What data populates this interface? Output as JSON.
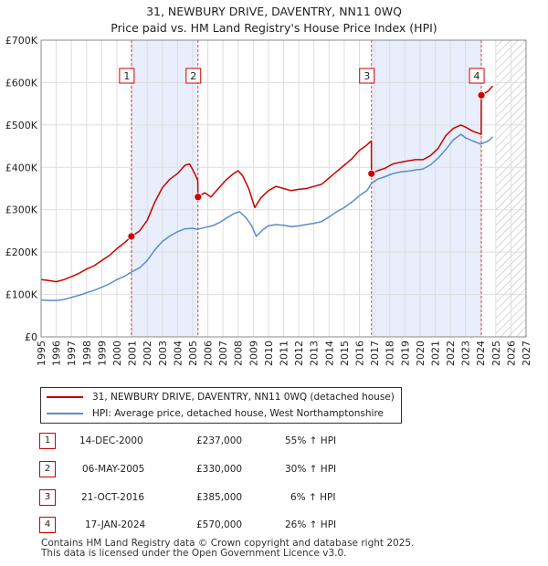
{
  "chart_data": {
    "type": "line",
    "title": "31, NEWBURY DRIVE, DAVENTRY, NN11 0WQ",
    "subtitle": "Price paid vs. HM Land Registry's House Price Index (HPI)",
    "xlim": [
      1995,
      2027
    ],
    "ylim": [
      0,
      700000
    ],
    "x_ticks": [
      1995,
      1996,
      1997,
      1998,
      1999,
      2000,
      2001,
      2002,
      2003,
      2004,
      2005,
      2006,
      2007,
      2008,
      2009,
      2010,
      2011,
      2012,
      2013,
      2014,
      2015,
      2016,
      2017,
      2018,
      2019,
      2020,
      2021,
      2022,
      2023,
      2024,
      2025,
      2026,
      2027
    ],
    "y_ticks": [
      {
        "value": 0,
        "label": "£0"
      },
      {
        "value": 100000,
        "label": "£100K"
      },
      {
        "value": 200000,
        "label": "£200K"
      },
      {
        "value": 300000,
        "label": "£300K"
      },
      {
        "value": 400000,
        "label": "£400K"
      },
      {
        "value": 500000,
        "label": "£500K"
      },
      {
        "value": 600000,
        "label": "£600K"
      },
      {
        "value": 700000,
        "label": "£700K"
      }
    ],
    "hatch_from": 2025.0,
    "shaded_spans": [
      [
        2000.96,
        2005.35
      ],
      [
        2016.8,
        2024.05
      ]
    ],
    "series": [
      {
        "name": "31, NEWBURY DRIVE, DAVENTRY, NN11 0WQ (detached house)",
        "color": "#cc0000",
        "points": [
          [
            1995.0,
            135000
          ],
          [
            1995.5,
            133000
          ],
          [
            1996.0,
            130000
          ],
          [
            1996.5,
            135000
          ],
          [
            1997.0,
            142000
          ],
          [
            1997.5,
            150000
          ],
          [
            1998.0,
            160000
          ],
          [
            1998.5,
            168000
          ],
          [
            1999.0,
            180000
          ],
          [
            1999.5,
            192000
          ],
          [
            2000.0,
            208000
          ],
          [
            2000.5,
            222000
          ],
          [
            2000.96,
            237000
          ],
          [
            2001.5,
            250000
          ],
          [
            2002.0,
            275000
          ],
          [
            2002.5,
            318000
          ],
          [
            2003.0,
            352000
          ],
          [
            2003.5,
            372000
          ],
          [
            2004.0,
            385000
          ],
          [
            2004.5,
            405000
          ],
          [
            2004.8,
            408000
          ],
          [
            2005.0,
            395000
          ],
          [
            2005.2,
            380000
          ],
          [
            2005.34,
            368000
          ],
          [
            2005.35,
            330000
          ],
          [
            2005.8,
            340000
          ],
          [
            2006.2,
            330000
          ],
          [
            2006.7,
            350000
          ],
          [
            2007.2,
            370000
          ],
          [
            2007.7,
            385000
          ],
          [
            2008.0,
            392000
          ],
          [
            2008.3,
            380000
          ],
          [
            2008.7,
            350000
          ],
          [
            2009.1,
            305000
          ],
          [
            2009.5,
            328000
          ],
          [
            2010.0,
            345000
          ],
          [
            2010.5,
            355000
          ],
          [
            2011.0,
            350000
          ],
          [
            2011.5,
            345000
          ],
          [
            2012.0,
            348000
          ],
          [
            2012.5,
            350000
          ],
          [
            2013.0,
            355000
          ],
          [
            2013.5,
            360000
          ],
          [
            2014.0,
            375000
          ],
          [
            2014.5,
            390000
          ],
          [
            2015.0,
            405000
          ],
          [
            2015.5,
            420000
          ],
          [
            2016.0,
            440000
          ],
          [
            2016.4,
            450000
          ],
          [
            2016.79,
            462000
          ],
          [
            2016.8,
            385000
          ],
          [
            2017.2,
            392000
          ],
          [
            2017.7,
            398000
          ],
          [
            2018.2,
            408000
          ],
          [
            2018.7,
            412000
          ],
          [
            2019.2,
            415000
          ],
          [
            2019.7,
            418000
          ],
          [
            2020.2,
            418000
          ],
          [
            2020.7,
            428000
          ],
          [
            2021.2,
            445000
          ],
          [
            2021.7,
            475000
          ],
          [
            2022.2,
            492000
          ],
          [
            2022.7,
            500000
          ],
          [
            2023.0,
            495000
          ],
          [
            2023.5,
            485000
          ],
          [
            2024.04,
            478000
          ],
          [
            2024.05,
            570000
          ],
          [
            2024.5,
            580000
          ],
          [
            2024.8,
            592000
          ]
        ]
      },
      {
        "name": "HPI: Average price, detached house, West Northamptonshire",
        "color": "#5b8ccc",
        "points": [
          [
            1995.0,
            87000
          ],
          [
            1995.5,
            86000
          ],
          [
            1996.0,
            86000
          ],
          [
            1996.5,
            88000
          ],
          [
            1997.0,
            93000
          ],
          [
            1997.5,
            98000
          ],
          [
            1998.0,
            104000
          ],
          [
            1998.5,
            110000
          ],
          [
            1999.0,
            117000
          ],
          [
            1999.5,
            125000
          ],
          [
            2000.0,
            135000
          ],
          [
            2000.5,
            143000
          ],
          [
            2000.96,
            153000
          ],
          [
            2001.5,
            163000
          ],
          [
            2002.0,
            180000
          ],
          [
            2002.5,
            205000
          ],
          [
            2003.0,
            225000
          ],
          [
            2003.5,
            238000
          ],
          [
            2004.0,
            248000
          ],
          [
            2004.5,
            255000
          ],
          [
            2005.0,
            256000
          ],
          [
            2005.35,
            254000
          ],
          [
            2005.8,
            258000
          ],
          [
            2006.3,
            262000
          ],
          [
            2006.8,
            270000
          ],
          [
            2007.3,
            282000
          ],
          [
            2007.8,
            292000
          ],
          [
            2008.1,
            295000
          ],
          [
            2008.5,
            282000
          ],
          [
            2008.9,
            262000
          ],
          [
            2009.2,
            237000
          ],
          [
            2009.6,
            252000
          ],
          [
            2010.0,
            262000
          ],
          [
            2010.5,
            265000
          ],
          [
            2011.0,
            263000
          ],
          [
            2011.5,
            260000
          ],
          [
            2012.0,
            262000
          ],
          [
            2012.5,
            265000
          ],
          [
            2013.0,
            268000
          ],
          [
            2013.5,
            272000
          ],
          [
            2014.0,
            283000
          ],
          [
            2014.5,
            295000
          ],
          [
            2015.0,
            305000
          ],
          [
            2015.5,
            318000
          ],
          [
            2016.0,
            333000
          ],
          [
            2016.5,
            345000
          ],
          [
            2016.8,
            362000
          ],
          [
            2017.2,
            372000
          ],
          [
            2017.7,
            378000
          ],
          [
            2018.2,
            385000
          ],
          [
            2018.7,
            389000
          ],
          [
            2019.2,
            391000
          ],
          [
            2019.7,
            394000
          ],
          [
            2020.2,
            396000
          ],
          [
            2020.7,
            406000
          ],
          [
            2021.2,
            422000
          ],
          [
            2021.7,
            442000
          ],
          [
            2022.2,
            465000
          ],
          [
            2022.7,
            478000
          ],
          [
            2023.0,
            470000
          ],
          [
            2023.5,
            462000
          ],
          [
            2024.0,
            455000
          ],
          [
            2024.5,
            462000
          ],
          [
            2024.8,
            472000
          ]
        ]
      }
    ],
    "sales": [
      {
        "label": "1",
        "x": 2000.96,
        "price": 237000
      },
      {
        "label": "2",
        "x": 2005.35,
        "price": 330000
      },
      {
        "label": "3",
        "x": 2016.8,
        "price": 385000
      },
      {
        "label": "4",
        "x": 2024.05,
        "price": 570000
      }
    ]
  },
  "legend": {
    "property": "31, NEWBURY DRIVE, DAVENTRY, NN11 0WQ (detached house)",
    "hpi": "HPI: Average price, detached house, West Northamptonshire"
  },
  "transactions": [
    {
      "num": "1",
      "date": "14-DEC-2000",
      "price": "£237,000",
      "hpi": "55% ↑ HPI"
    },
    {
      "num": "2",
      "date": "06-MAY-2005",
      "price": "£330,000",
      "hpi": "30% ↑ HPI"
    },
    {
      "num": "3",
      "date": "21-OCT-2016",
      "price": "£385,000",
      "hpi": "6% ↑ HPI"
    },
    {
      "num": "4",
      "date": "17-JAN-2024",
      "price": "£570,000",
      "hpi": "26% ↑ HPI"
    }
  ],
  "footer": {
    "line1": "Contains HM Land Registry data © Crown copyright and database right 2025.",
    "line2": "This data is licensed under the Open Government Licence v3.0."
  }
}
